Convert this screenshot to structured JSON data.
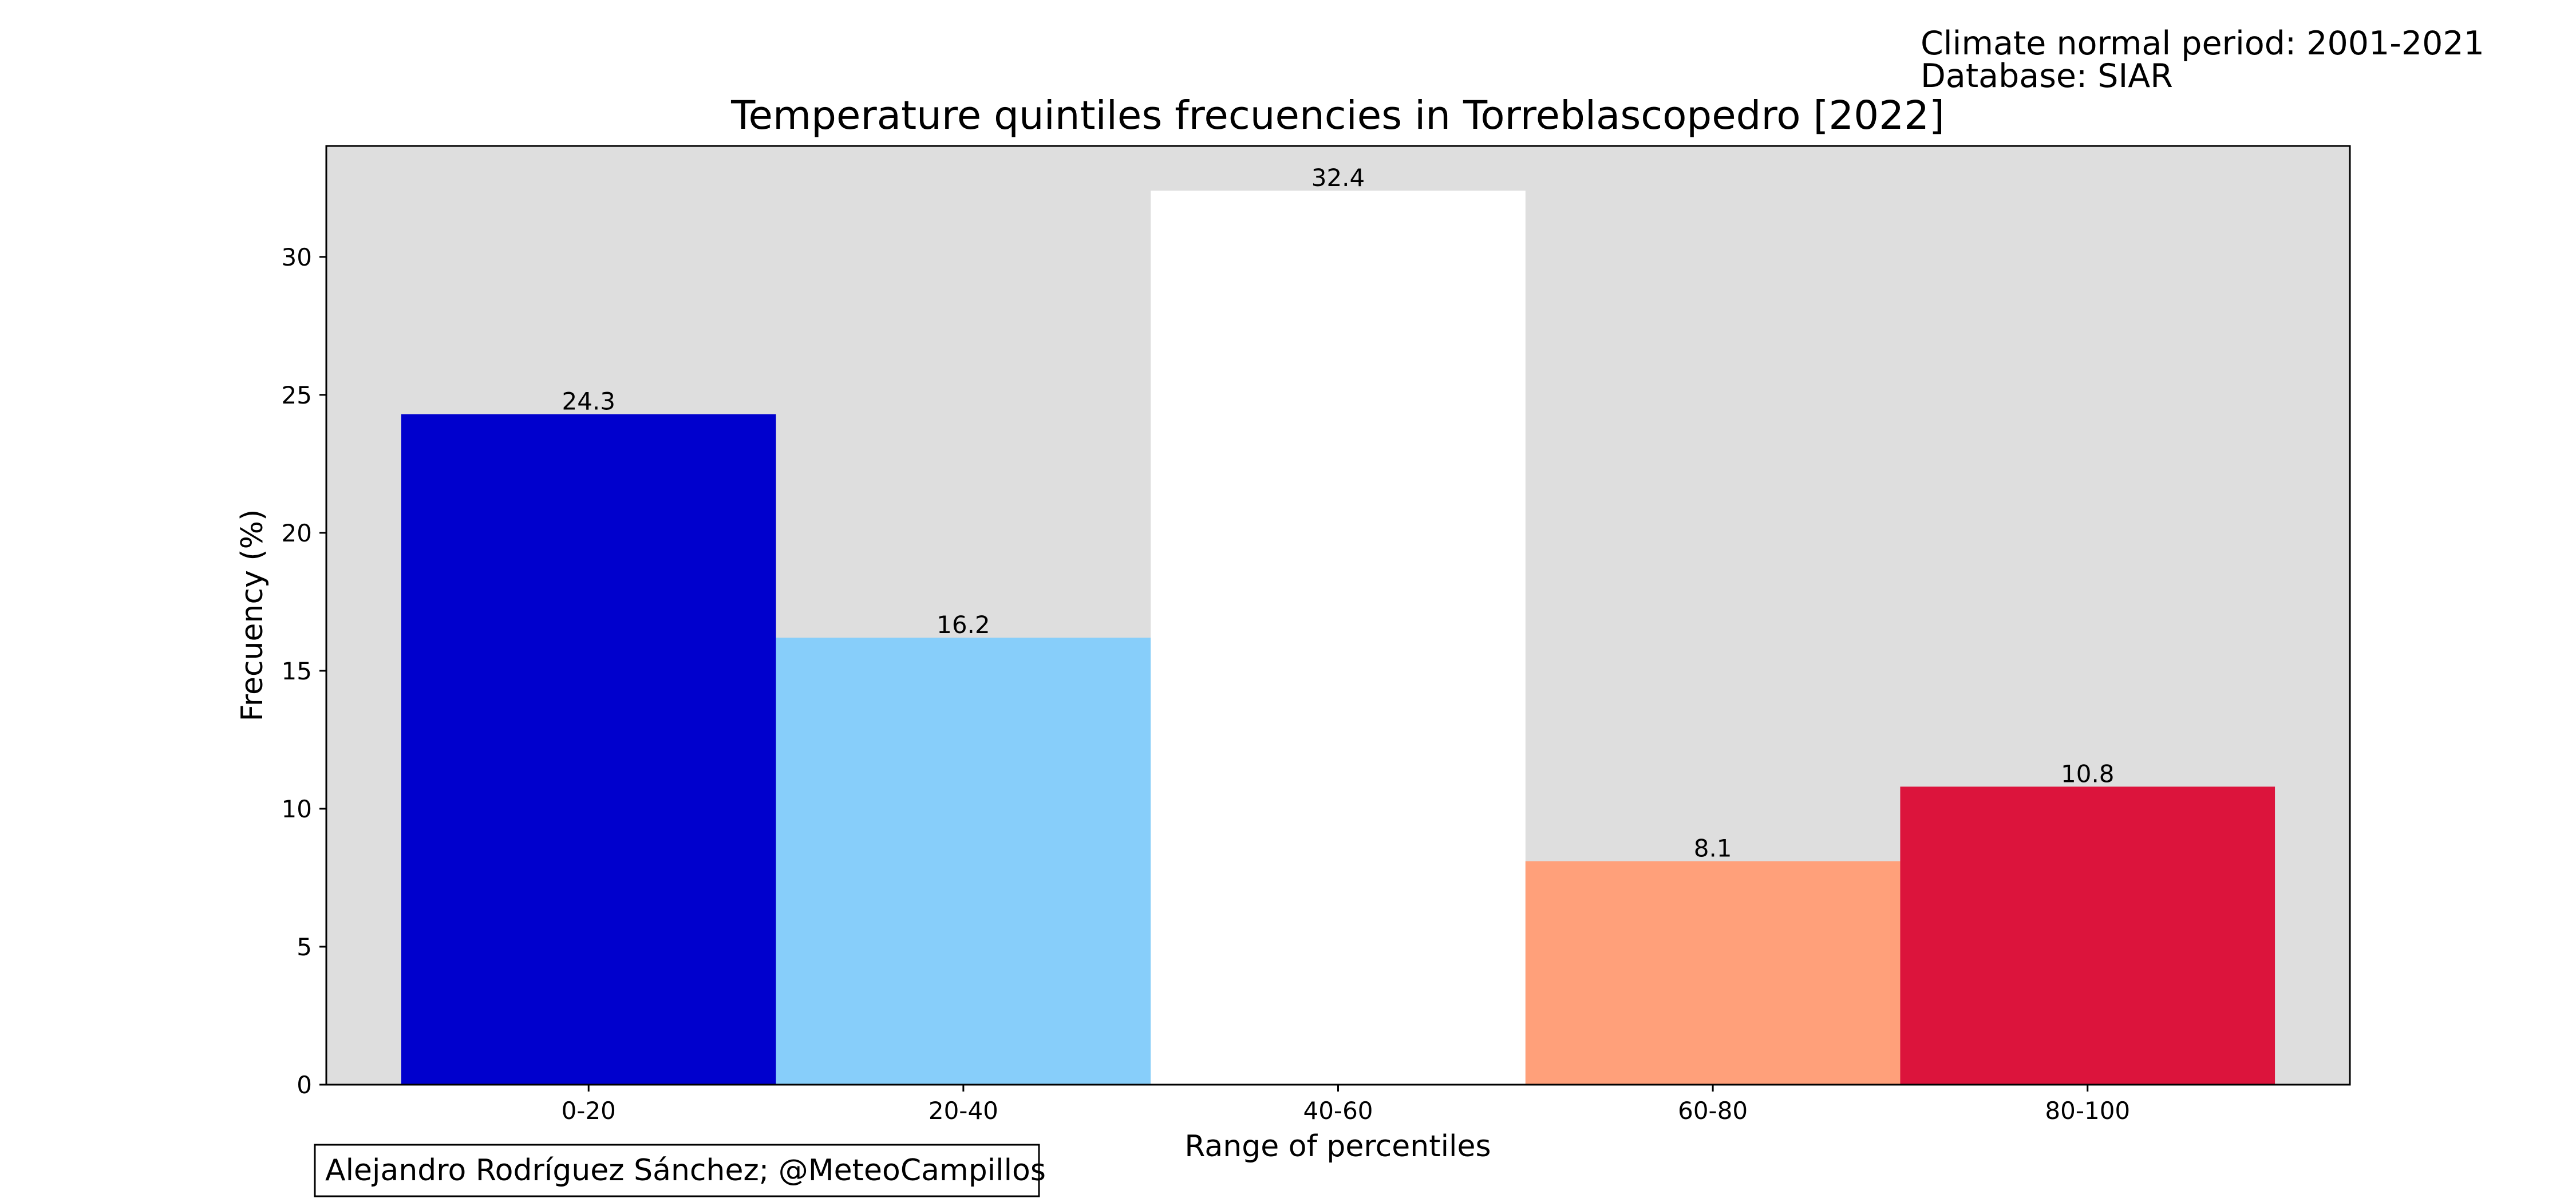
{
  "header": {
    "notes": [
      "Climate normal period: 2001-2021",
      "Database: SIAR"
    ]
  },
  "credit": "Alejandro Rodríguez Sánchez; @MeteoCampillos",
  "chart_data": {
    "type": "bar",
    "title": "Temperature quintiles frecuencies in Torreblascopedro [2022]",
    "xlabel": "Range of percentiles",
    "ylabel": "Frecuency (%)",
    "categories": [
      "0-20",
      "20-40",
      "40-60",
      "60-80",
      "80-100"
    ],
    "values": [
      24.3,
      16.2,
      32.4,
      8.1,
      10.8
    ],
    "data_labels": [
      "24.3",
      "16.2",
      "32.4",
      "8.1",
      "10.8"
    ],
    "colors": [
      "#0000cd",
      "#87cefa",
      "#ffffff",
      "#ffa07a",
      "#dc143c"
    ],
    "plot_background": "#dedede",
    "ylim": [
      0,
      34.02
    ],
    "yticks": [
      0,
      5,
      10,
      15,
      20,
      25,
      30
    ],
    "grid": false,
    "legend": "none"
  }
}
